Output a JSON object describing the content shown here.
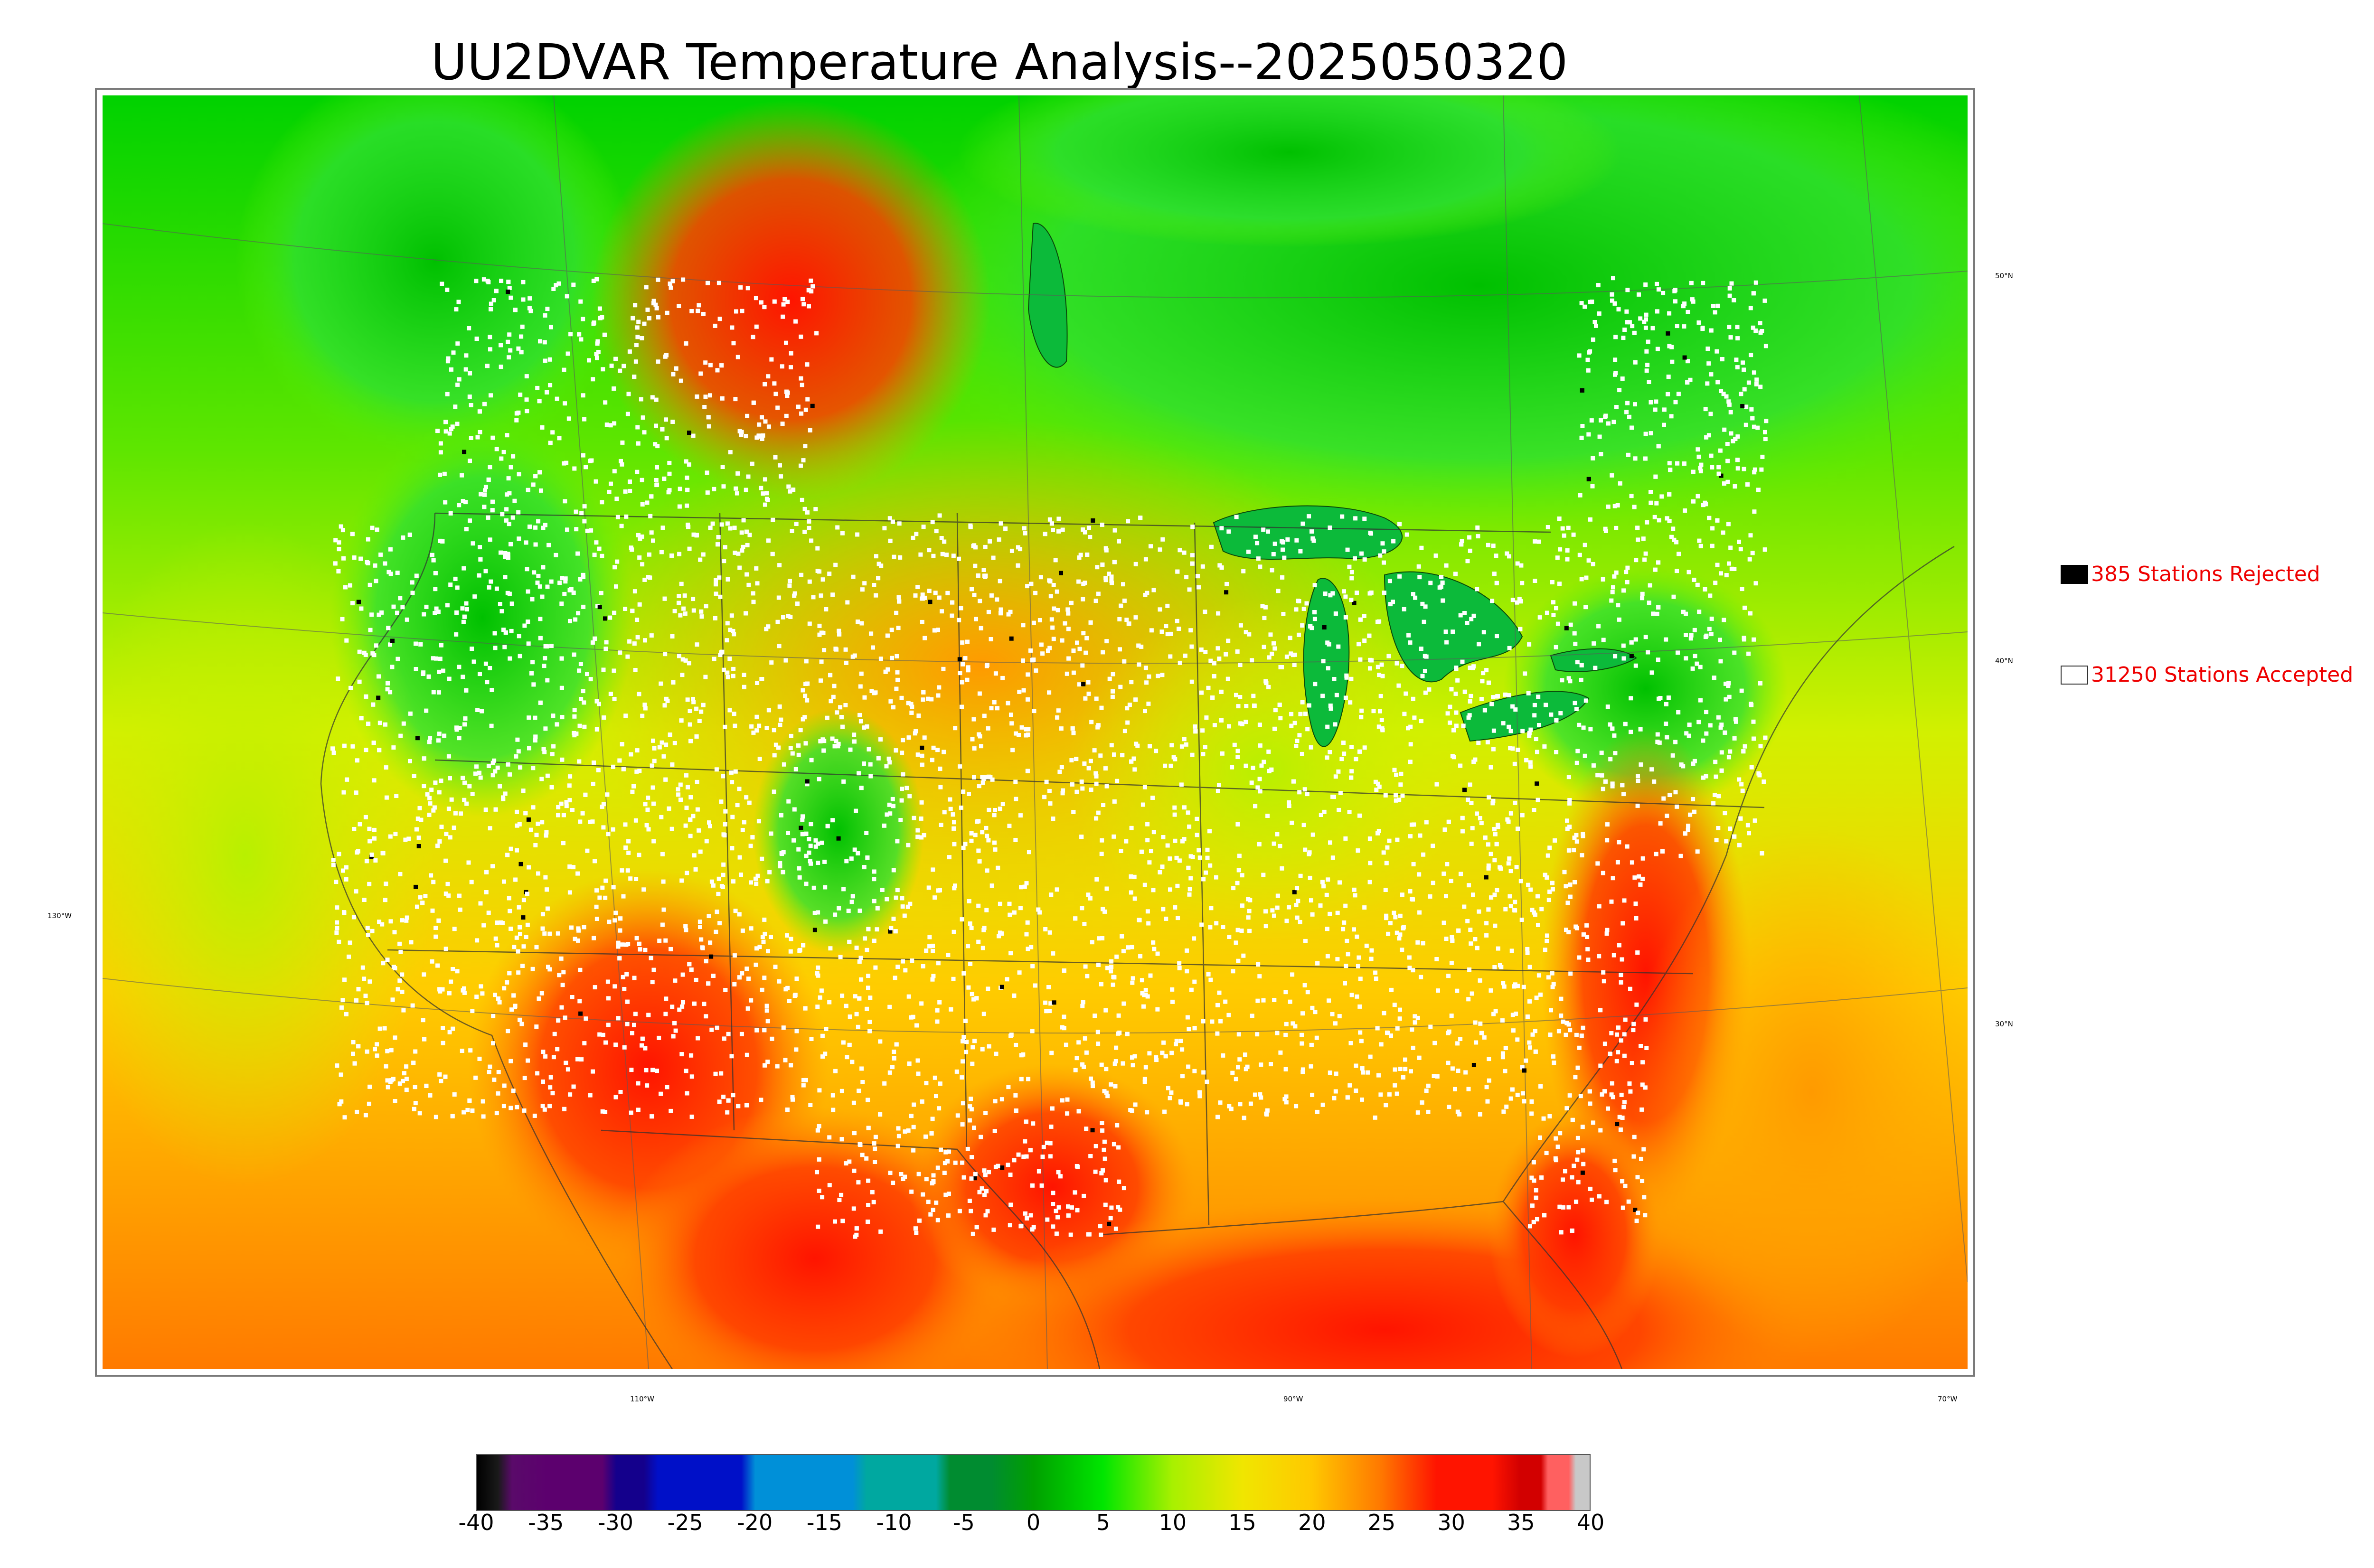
{
  "title": "UU2DVAR Temperature Analysis--2025050320",
  "legend": {
    "rejected": {
      "label": "385 Stations Rejected",
      "swatch": "#000000"
    },
    "accepted": {
      "label": "31250 Stations Accepted",
      "swatch": "#ffffff"
    }
  },
  "graticule": {
    "right_labels": [
      "50°N",
      "40°N",
      "30°N"
    ],
    "left_labels": [
      "130°W"
    ],
    "bottom_labels": [
      "110°W",
      "90°W",
      "70°W"
    ]
  },
  "colorbar": {
    "ticks": [
      "-40",
      "-35",
      "-30",
      "-25",
      "-20",
      "-15",
      "-10",
      "-5",
      "0",
      "5",
      "10",
      "15",
      "20",
      "25",
      "30",
      "35",
      "40"
    ],
    "colors": {
      "c_m40": "#000000",
      "c_m38": "#1a1a1a",
      "c_m37": "#5a0a6a",
      "c_m35": "#5c006e",
      "c_m30": "#14008c",
      "c_m27": "#0010c8",
      "c_m20": "#0090d8",
      "c_m10": "#00a8a0",
      "c_m5": "#008c30",
      "c_0": "#00a000",
      "c_5": "#00e600",
      "c_10": "#a8f000",
      "c_15": "#f0e600",
      "c_20": "#ffc800",
      "c_25": "#ff7800",
      "c_30": "#ff1400",
      "c_35": "#d20000",
      "c_37": "#ff6060",
      "c_39": "#c8c8c8"
    }
  },
  "map_colors": {
    "cold": "#00c800",
    "cool": "#2ce62c",
    "mild": "#c8f000",
    "warm": "#ffc000",
    "hot": "#ff6a00",
    "very_hot": "#ff1e00",
    "stations": "#ffffff"
  }
}
